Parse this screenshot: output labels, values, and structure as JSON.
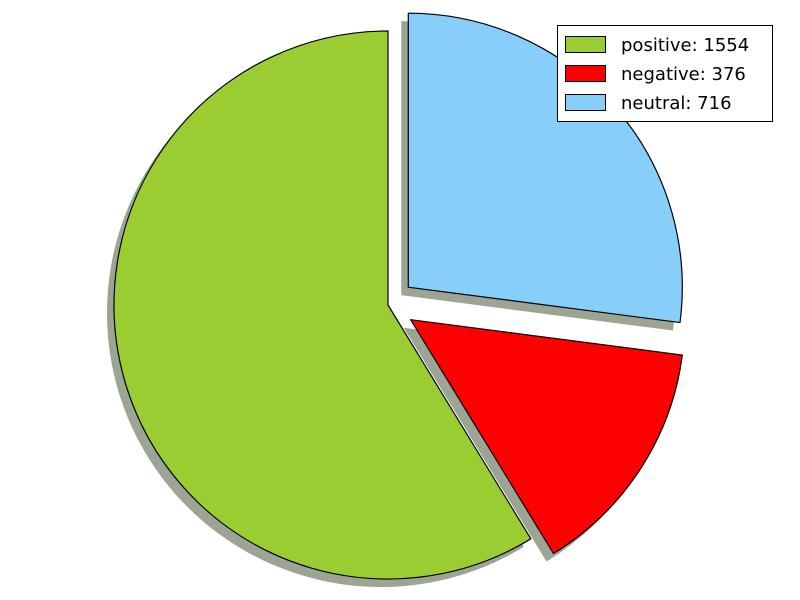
{
  "chart_data": {
    "type": "pie",
    "series": [
      {
        "name": "positive",
        "value": 1554,
        "label": "positive: 1554",
        "color": "#9acd32"
      },
      {
        "name": "negative",
        "value": 376,
        "label": "negative: 376",
        "color": "#ff0000"
      },
      {
        "name": "neutral",
        "value": 716,
        "label": "neutral: 716",
        "color": "#87cefa"
      }
    ],
    "exploded": [
      "negative",
      "neutral"
    ],
    "shadow": true,
    "start_angle_deg": 90,
    "direction": "counterclockwise",
    "legend": "top-right"
  }
}
